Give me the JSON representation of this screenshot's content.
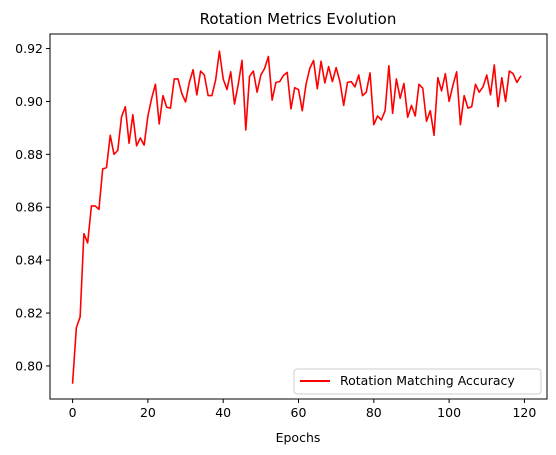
{
  "chart_data": {
    "type": "line",
    "title": "Rotation Metrics Evolution",
    "xlabel": "Epochs",
    "ylabel": "",
    "xlim": [
      -6,
      126
    ],
    "ylim": [
      0.7875,
      0.9255
    ],
    "xticks": [
      0,
      20,
      40,
      60,
      80,
      100,
      120
    ],
    "yticks": [
      0.8,
      0.82,
      0.84,
      0.86,
      0.88,
      0.9,
      0.92
    ],
    "grid": false,
    "legend_position": "lower-right",
    "series": [
      {
        "name": "Rotation Matching Accuracy",
        "color": "#ff0000",
        "x": [
          0,
          1,
          2,
          3,
          4,
          5,
          6,
          7,
          8,
          9,
          10,
          11,
          12,
          13,
          14,
          15,
          16,
          17,
          18,
          19,
          20,
          21,
          22,
          23,
          24,
          25,
          26,
          27,
          28,
          29,
          30,
          31,
          32,
          33,
          34,
          35,
          36,
          37,
          38,
          39,
          40,
          41,
          42,
          43,
          44,
          45,
          46,
          47,
          48,
          49,
          50,
          51,
          52,
          53,
          54,
          55,
          56,
          57,
          58,
          59,
          60,
          61,
          62,
          63,
          64,
          65,
          66,
          67,
          68,
          69,
          70,
          71,
          72,
          73,
          74,
          75,
          76,
          77,
          78,
          79,
          80,
          81,
          82,
          83,
          84,
          85,
          86,
          87,
          88,
          89,
          90,
          91,
          92,
          93,
          94,
          95,
          96,
          97,
          98,
          99,
          100,
          101,
          102,
          103,
          104,
          105,
          106,
          107,
          108,
          109,
          110,
          111,
          112,
          113,
          114,
          115,
          116,
          117,
          118,
          119
        ],
        "values": [
          0.7935,
          0.8145,
          0.8185,
          0.85,
          0.8465,
          0.8605,
          0.8605,
          0.8592,
          0.8745,
          0.875,
          0.8872,
          0.88,
          0.8815,
          0.8942,
          0.898,
          0.8842,
          0.895,
          0.8832,
          0.8862,
          0.8835,
          0.8945,
          0.9012,
          0.9065,
          0.8915,
          0.9022,
          0.8978,
          0.8975,
          0.9085,
          0.9085,
          0.903,
          0.8998,
          0.9072,
          0.912,
          0.9025,
          0.9115,
          0.91,
          0.9022,
          0.9022,
          0.9082,
          0.919,
          0.9085,
          0.9045,
          0.9112,
          0.899,
          0.9065,
          0.9155,
          0.8892,
          0.9095,
          0.9115,
          0.9035,
          0.91,
          0.9125,
          0.917,
          0.9005,
          0.9072,
          0.9075,
          0.9098,
          0.911,
          0.8972,
          0.9052,
          0.9045,
          0.8965,
          0.9065,
          0.9125,
          0.9155,
          0.9048,
          0.9152,
          0.907,
          0.9132,
          0.9075,
          0.9128,
          0.9075,
          0.8985,
          0.9072,
          0.9075,
          0.9055,
          0.91,
          0.9022,
          0.9035,
          0.9108,
          0.8912,
          0.8945,
          0.893,
          0.8965,
          0.9135,
          0.8955,
          0.9085,
          0.9012,
          0.9068,
          0.894,
          0.8985,
          0.8945,
          0.9065,
          0.905,
          0.8925,
          0.8965,
          0.8872,
          0.909,
          0.904,
          0.9105,
          0.9,
          0.906,
          0.9112,
          0.8912,
          0.9022,
          0.8975,
          0.898,
          0.9065,
          0.9035,
          0.9055,
          0.91,
          0.9025,
          0.9138,
          0.898,
          0.909,
          0.9,
          0.9115,
          0.9105,
          0.9072,
          0.9095
        ]
      }
    ]
  }
}
